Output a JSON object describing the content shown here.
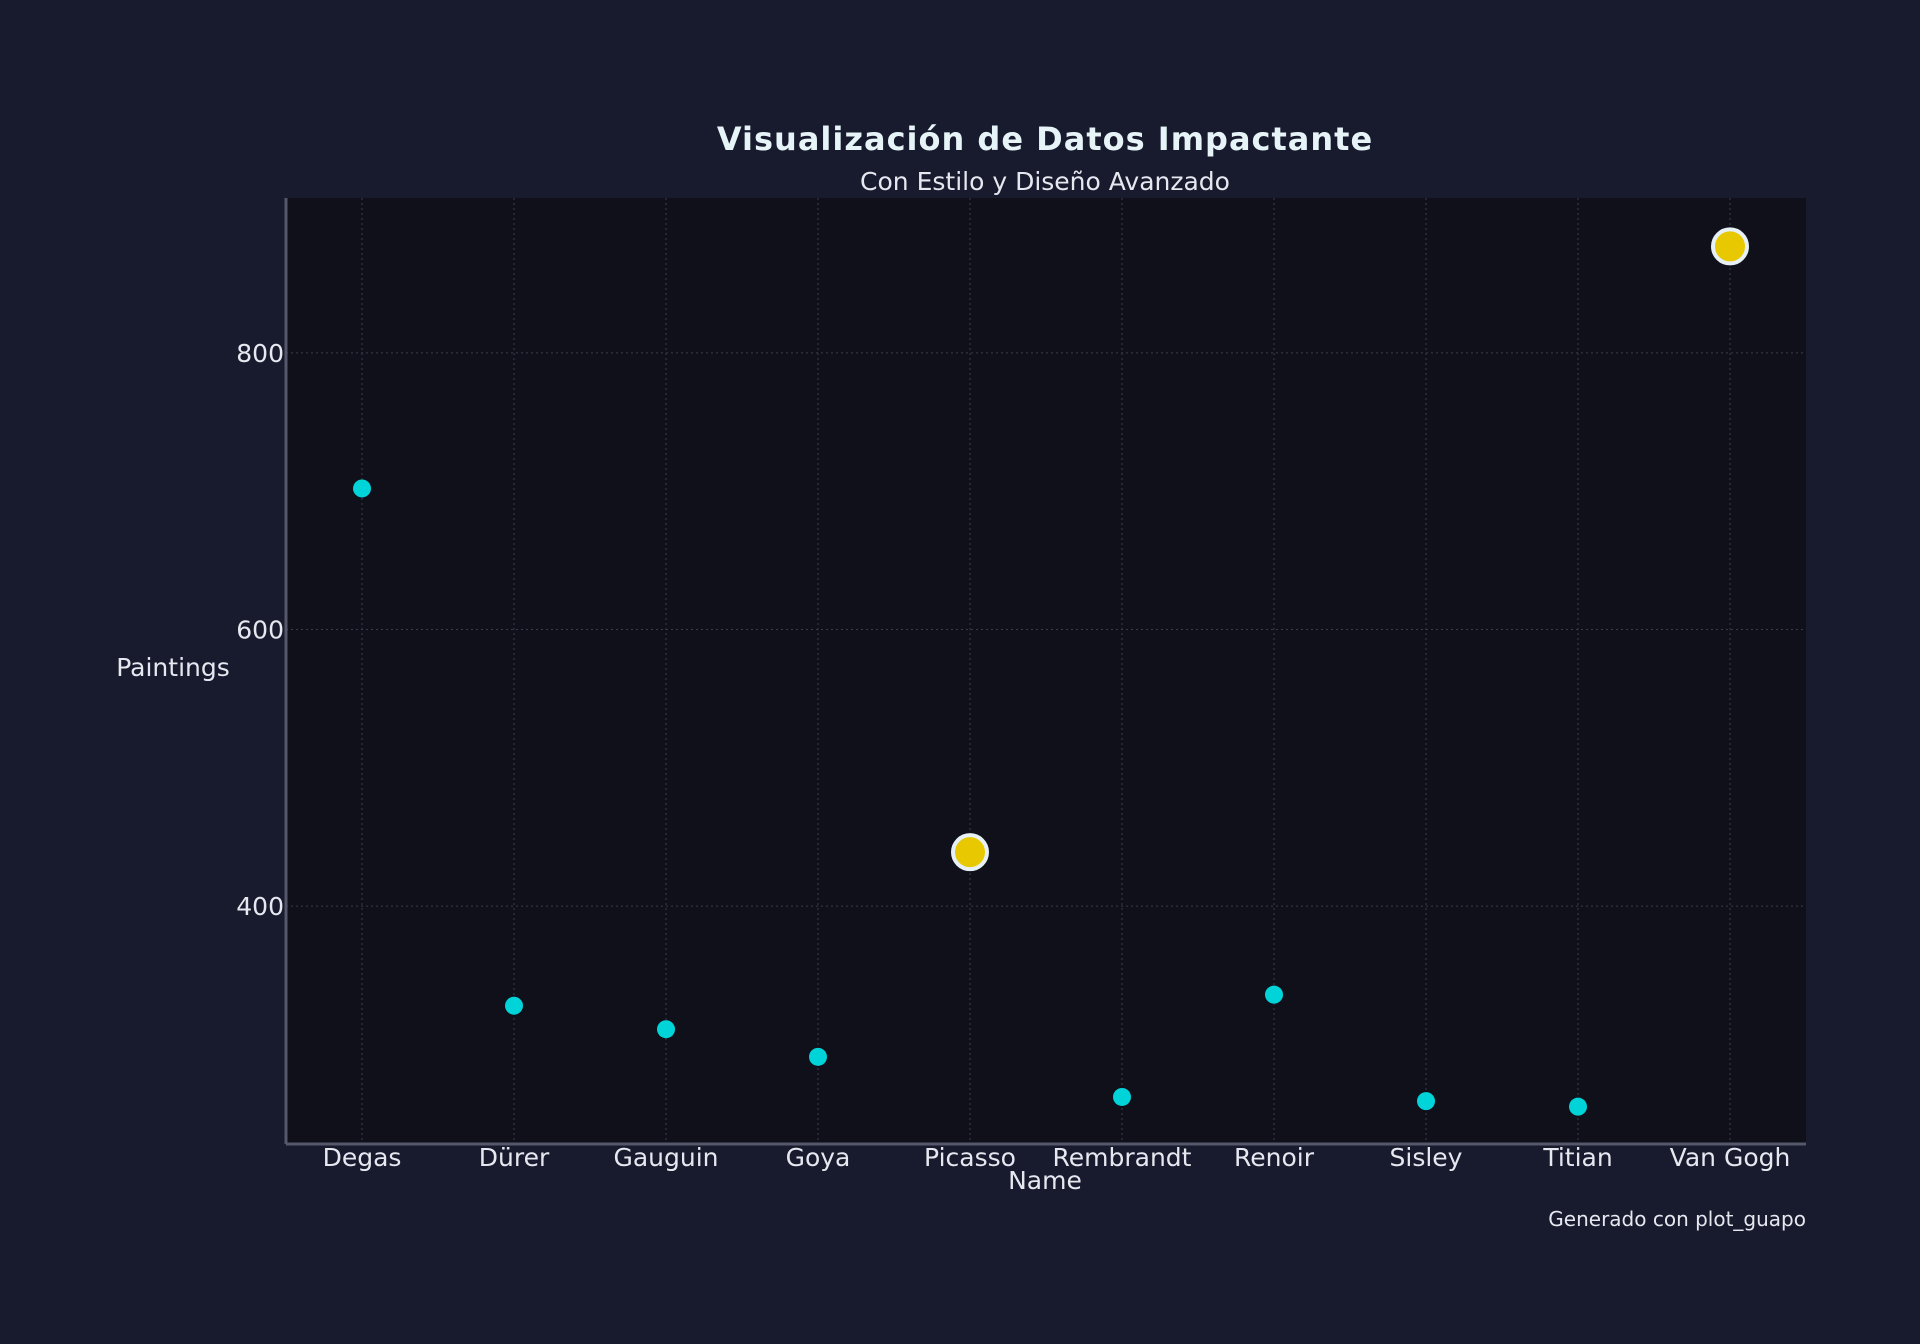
{
  "chart_data": {
    "type": "scatter",
    "title": "Visualización de Datos Impactante",
    "subtitle": "Con Estilo y Diseño Avanzado",
    "xlabel": "Name",
    "ylabel": "Paintings",
    "caption": "Generado con plot_guapo",
    "categories": [
      "Degas",
      "Dürer",
      "Gauguin",
      "Goya",
      "Picasso",
      "Rembrandt",
      "Renoir",
      "Sisley",
      "Titian",
      "Van Gogh"
    ],
    "values": [
      702,
      328,
      311,
      291,
      439,
      262,
      336,
      259,
      255,
      877
    ],
    "highlighted": [
      "Picasso",
      "Van Gogh"
    ],
    "yticks": [
      400,
      600,
      800
    ],
    "ylim": [
      228,
      912
    ],
    "grid": true,
    "colors": {
      "background": "#181a2e",
      "plot_background": "#0f1019",
      "point": "#00d4d8",
      "highlight": "#e8c800",
      "highlight_edge": "#e6f0f5",
      "grid": "#3a3c4e",
      "axis": "#55576a",
      "text": "#e6e8f0",
      "title": "#e6f4f8"
    }
  }
}
